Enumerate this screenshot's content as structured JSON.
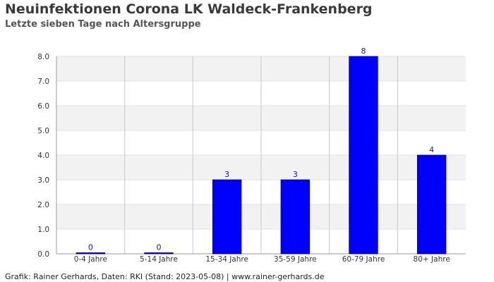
{
  "header": {
    "title": "Neuinfektionen Corona LK Waldeck-Frankenberg",
    "subtitle": "Letzte sieben Tage nach Altersgruppe"
  },
  "footer": {
    "source": "Grafik: Rainer Gerhards, Daten: RKI (Stand: 2023-05-08) | www.rainer-gerhards.de"
  },
  "colors": {
    "bar": "#0000ff",
    "band": "#f2f2f2",
    "grid": "#c8c8c8"
  },
  "chart_data": {
    "type": "bar",
    "title": "Neuinfektionen Corona LK Waldeck-Frankenberg",
    "subtitle": "Letzte sieben Tage nach Altersgruppe",
    "categories": [
      "0-4 Jahre",
      "5-14 Jahre",
      "15-34 Jahre",
      "35-59 Jahre",
      "60-79 Jahre",
      "80+ Jahre"
    ],
    "values": [
      0,
      0,
      3,
      3,
      8,
      4
    ],
    "data_labels": [
      "0",
      "0",
      "3",
      "3",
      "8",
      "4"
    ],
    "ylim": [
      0,
      8
    ],
    "yticks": [
      "0.0",
      "1.0",
      "2.0",
      "3.0",
      "4.0",
      "5.0",
      "6.0",
      "7.0",
      "8.0"
    ],
    "xlabel": "",
    "ylabel": "",
    "grid": true,
    "legend": "none"
  }
}
